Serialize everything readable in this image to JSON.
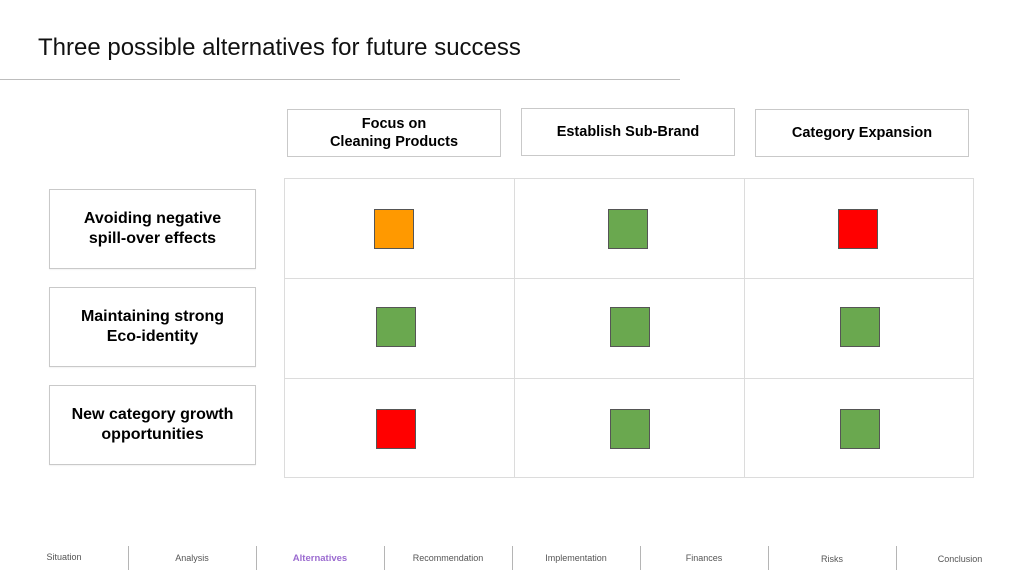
{
  "title": "Three possible alternatives for future success",
  "columns": [
    {
      "label": "Focus on\nCleaning Products"
    },
    {
      "label": "Establish Sub-Brand"
    },
    {
      "label": "Category Expansion"
    }
  ],
  "rows": [
    {
      "label": "Avoiding negative\nspill-over effects",
      "ratings": [
        "orange",
        "green",
        "red"
      ]
    },
    {
      "label": "Maintaining strong\nEco-identity",
      "ratings": [
        "green",
        "green",
        "green"
      ]
    },
    {
      "label": "New category growth\nopportunities",
      "ratings": [
        "red",
        "green",
        "green"
      ]
    }
  ],
  "colors": {
    "orange": "#ff9900",
    "green": "#6aa84f",
    "red": "#ff0000",
    "active_nav": "#9b6bd0"
  },
  "nav": {
    "items": [
      "Situation",
      "Analysis",
      "Alternatives",
      "Recommendation",
      "Implementation",
      "Finances",
      "Risks",
      "Conclusion"
    ],
    "active_index": 2
  }
}
